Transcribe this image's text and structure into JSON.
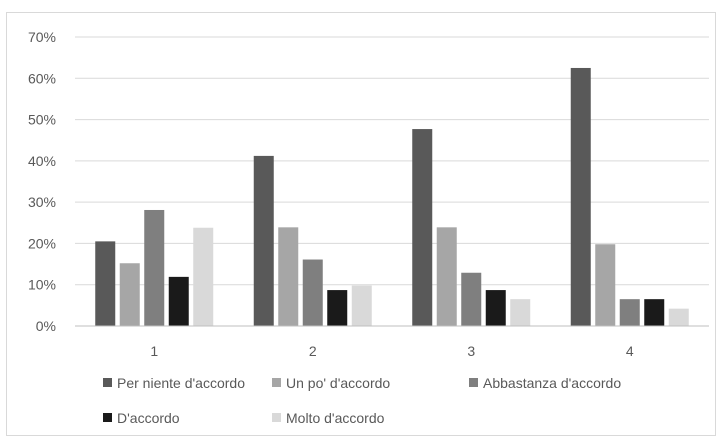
{
  "chart_data": {
    "type": "bar",
    "title": "",
    "xlabel": "",
    "ylabel": "",
    "categories": [
      "1",
      "2",
      "3",
      "4"
    ],
    "ylim": [
      0,
      70
    ],
    "yticks": [
      0,
      10,
      20,
      30,
      40,
      50,
      60,
      70
    ],
    "ytick_labels": [
      "0%",
      "10%",
      "20%",
      "30%",
      "40%",
      "50%",
      "60%",
      "70%"
    ],
    "grid": true,
    "legend_position": "bottom",
    "series": [
      {
        "name": "Per niente d'accordo",
        "color": "#595959",
        "values": [
          20.5,
          41.2,
          47.7,
          62.5
        ]
      },
      {
        "name": "Un po' d'accordo",
        "color": "#a6a6a6",
        "values": [
          15.2,
          23.9,
          23.9,
          19.8
        ]
      },
      {
        "name": "Abbastanza d'accordo",
        "color": "#7f7f7f",
        "values": [
          28.1,
          16.1,
          12.9,
          6.5
        ]
      },
      {
        "name": "D'accordo",
        "color": "#1a1a1a",
        "values": [
          11.9,
          8.7,
          8.7,
          6.5
        ]
      },
      {
        "name": "Molto d'accordo",
        "color": "#d9d9d9",
        "values": [
          23.8,
          9.8,
          6.5,
          4.2
        ]
      }
    ]
  }
}
